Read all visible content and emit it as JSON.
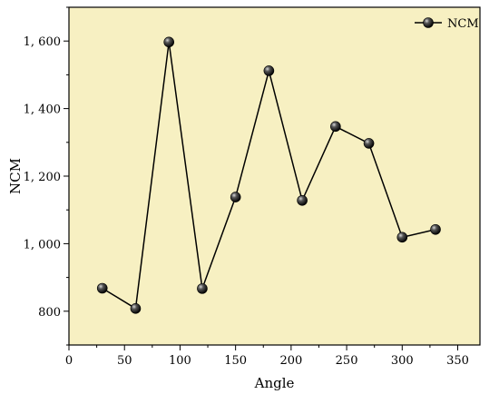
{
  "chart_data": {
    "type": "line",
    "title": "",
    "xlabel": "Angle",
    "ylabel": "NCM",
    "xlim": [
      0,
      370
    ],
    "ylim": [
      700,
      1700
    ],
    "xticks": [
      0,
      50,
      100,
      150,
      200,
      250,
      300,
      350
    ],
    "yticks": [
      800,
      1000,
      1200,
      1400,
      1600
    ],
    "xtick_labels": [
      "0",
      "50",
      "100",
      "150",
      "200",
      "250",
      "300",
      "350"
    ],
    "ytick_labels": [
      "800",
      "1, 000",
      "1, 200",
      "1, 400",
      "1, 600"
    ],
    "grid": false,
    "legend_position": "top-right",
    "colors": {
      "plot_background": "#f7f0c2",
      "line": "#000000",
      "marker": "#1a1a1a"
    },
    "series": [
      {
        "name": "NCM",
        "x": [
          30,
          60,
          90,
          120,
          150,
          180,
          210,
          240,
          270,
          300,
          330
        ],
        "values": [
          868,
          808,
          1597,
          867,
          1138,
          1512,
          1128,
          1347,
          1297,
          1019,
          1042
        ]
      }
    ]
  }
}
